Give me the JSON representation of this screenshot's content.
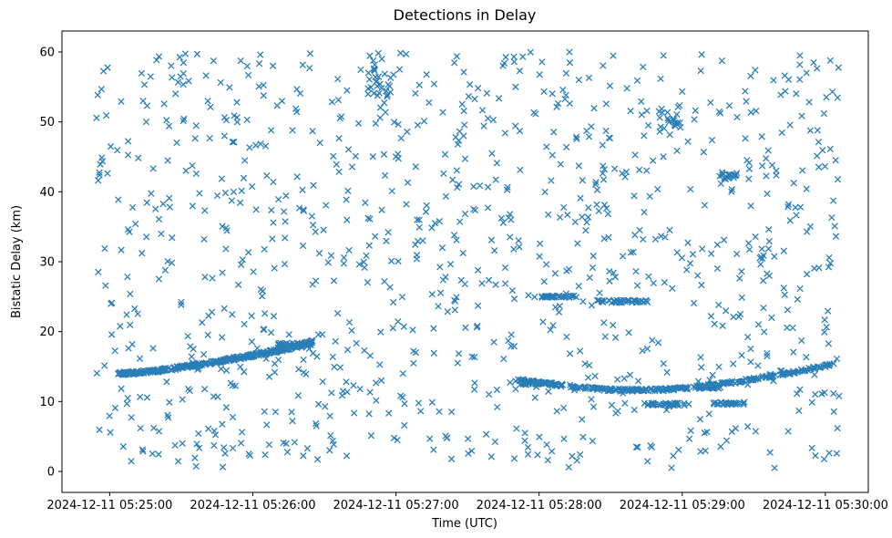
{
  "figure": {
    "background": "#ffffff",
    "frame_color": "#000000"
  },
  "chart_data": {
    "type": "scatter",
    "title": "Detections in Delay",
    "xlabel": "Time (UTC)",
    "ylabel": "Bistatic Delay (km)",
    "marker": "x",
    "marker_color": "#1f77b4",
    "x_axis": {
      "tick_seconds": [
        0,
        60,
        120,
        180,
        240,
        300
      ],
      "tick_labels": [
        "2024-12-11 05:25:00",
        "2024-12-11 05:26:00",
        "2024-12-11 05:27:00",
        "2024-12-11 05:28:00",
        "2024-12-11 05:29:00",
        "2024-12-11 05:30:00"
      ],
      "xlim_seconds": [
        -20,
        318
      ]
    },
    "y_axis": {
      "ticks": [
        0,
        10,
        20,
        30,
        40,
        50,
        60
      ],
      "ylim": [
        -3,
        63
      ]
    },
    "noise": {
      "seed": 42,
      "count": 1000,
      "t_range": [
        -6,
        307
      ],
      "y_range": [
        0.5,
        60
      ]
    },
    "tracks": [
      {
        "name": "ascending-track",
        "count": 320,
        "jitter_y": 0.22,
        "points": [
          [
            3,
            13.9
          ],
          [
            20,
            14.4
          ],
          [
            40,
            15.4
          ],
          [
            60,
            16.6
          ],
          [
            75,
            17.6
          ],
          [
            85,
            18.6
          ]
        ]
      },
      {
        "name": "u-shaped-track",
        "count": 300,
        "jitter_y": 0.2,
        "points": [
          [
            170,
            13.1
          ],
          [
            185,
            12.5
          ],
          [
            200,
            11.9
          ],
          [
            215,
            11.6
          ],
          [
            230,
            11.7
          ],
          [
            245,
            12.0
          ],
          [
            260,
            12.7
          ],
          [
            275,
            13.5
          ],
          [
            290,
            14.4
          ],
          [
            302,
            15.3
          ]
        ]
      }
    ],
    "clusters": [
      {
        "name": "track1-start-blob",
        "y": 14.1,
        "t": [
          4,
          14
        ],
        "count": 25,
        "jitter_y": 0.15
      },
      {
        "name": "track1-end-blob",
        "y": 18.0,
        "t": [
          70,
          85
        ],
        "count": 35,
        "jitter_y": 0.45
      },
      {
        "name": "track2-start-blob",
        "y": 12.6,
        "t": [
          172,
          186
        ],
        "count": 30,
        "jitter_y": 0.2
      },
      {
        "name": "line-25km",
        "y": 25.0,
        "t": [
          181,
          196
        ],
        "count": 35,
        "jitter_y": 0.15
      },
      {
        "name": "line-24km",
        "y": 24.3,
        "t": [
          203,
          226
        ],
        "count": 45,
        "jitter_y": 0.2
      },
      {
        "name": "line-9.6km-a",
        "y": 9.6,
        "t": [
          224,
          243
        ],
        "count": 35,
        "jitter_y": 0.2
      },
      {
        "name": "line-9.7km-b",
        "y": 9.7,
        "t": [
          252,
          266
        ],
        "count": 28,
        "jitter_y": 0.2
      },
      {
        "name": "line-12km",
        "y": 12.0,
        "t": [
          246,
          257
        ],
        "count": 22,
        "jitter_y": 0.2
      },
      {
        "name": "upper-blob-0527",
        "y": 56.5,
        "t": [
          108,
          118
        ],
        "count": 30,
        "jitter_y": 3.0
      },
      {
        "name": "upper-blob-0529",
        "y": 50.5,
        "t": [
          230,
          240
        ],
        "count": 24,
        "jitter_y": 2.0
      },
      {
        "name": "blob-42km",
        "y": 42.3,
        "t": [
          255,
          263
        ],
        "count": 16,
        "jitter_y": 0.5
      }
    ]
  }
}
